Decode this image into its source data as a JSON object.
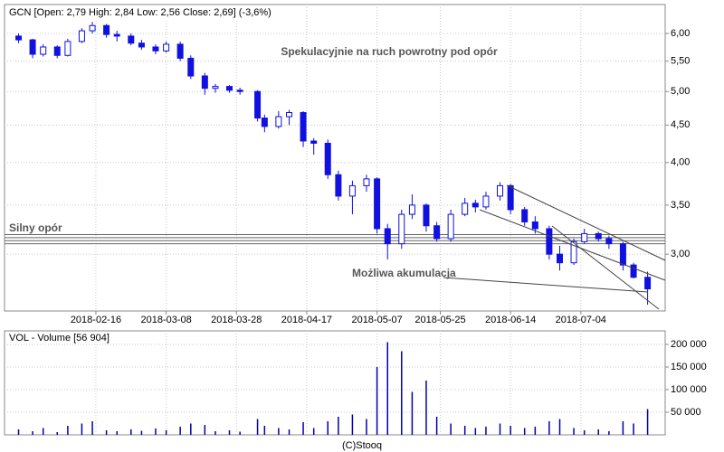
{
  "chart_data": {
    "type": "candlestick",
    "title": "GCN [Open: 2,79 High: 2,84 Low: 2,56 Close: 2,69] (-3,6%)",
    "volume_title": "VOL - Volume [56 904]",
    "footer": "(C)Stooq",
    "log_scale": true,
    "grid": true,
    "color": "#1010e0",
    "volume_color": "#0000aa",
    "x": [
      "2018-01-25",
      "2018-01-29",
      "2018-02-01",
      "2018-02-05",
      "2018-02-08",
      "2018-02-12",
      "2018-02-15",
      "2018-02-19",
      "2018-02-22",
      "2018-02-26",
      "2018-03-01",
      "2018-03-05",
      "2018-03-08",
      "2018-03-12",
      "2018-03-15",
      "2018-03-19",
      "2018-03-22",
      "2018-03-26",
      "2018-03-29",
      "2018-04-03",
      "2018-04-05",
      "2018-04-09",
      "2018-04-12",
      "2018-04-16",
      "2018-04-19",
      "2018-04-23",
      "2018-04-26",
      "2018-04-30",
      "2018-05-04",
      "2018-05-07",
      "2018-05-10",
      "2018-05-14",
      "2018-05-17",
      "2018-05-21",
      "2018-05-24",
      "2018-05-28",
      "2018-06-01",
      "2018-06-04",
      "2018-06-07",
      "2018-06-11",
      "2018-06-14",
      "2018-06-18",
      "2018-06-21",
      "2018-06-25",
      "2018-06-28",
      "2018-07-02",
      "2018-07-05",
      "2018-07-09",
      "2018-07-12",
      "2018-07-16",
      "2018-07-19",
      "2018-07-23"
    ],
    "open": [
      5.95,
      5.88,
      5.62,
      5.75,
      5.6,
      5.85,
      6.05,
      6.15,
      5.98,
      5.95,
      5.82,
      5.75,
      5.68,
      5.8,
      5.55,
      5.25,
      5.05,
      5.08,
      5.02,
      5.0,
      4.6,
      4.48,
      4.62,
      4.68,
      4.28,
      4.25,
      3.85,
      3.6,
      3.72,
      3.8,
      3.25,
      3.1,
      3.4,
      3.5,
      3.28,
      3.15,
      3.4,
      3.52,
      3.48,
      3.6,
      3.72,
      3.45,
      3.32,
      3.25,
      3.0,
      2.92,
      3.12,
      3.2,
      3.15,
      3.1,
      2.9,
      2.79
    ],
    "high": [
      6.0,
      5.9,
      5.8,
      5.78,
      5.9,
      6.1,
      6.22,
      6.18,
      6.05,
      6.0,
      5.88,
      5.8,
      5.85,
      5.85,
      5.6,
      5.3,
      5.12,
      5.1,
      5.06,
      5.02,
      4.65,
      4.7,
      4.72,
      4.7,
      4.32,
      4.3,
      3.9,
      3.78,
      3.85,
      3.82,
      3.3,
      3.45,
      3.62,
      3.52,
      3.32,
      3.45,
      3.58,
      3.56,
      3.65,
      3.76,
      3.74,
      3.48,
      3.38,
      3.28,
      3.08,
      3.15,
      3.25,
      3.22,
      3.18,
      3.12,
      2.92,
      2.84
    ],
    "low": [
      5.82,
      5.55,
      5.58,
      5.55,
      5.58,
      5.82,
      6.0,
      5.92,
      5.85,
      5.78,
      5.7,
      5.62,
      5.65,
      5.5,
      5.2,
      4.95,
      4.98,
      4.98,
      4.95,
      4.55,
      4.4,
      4.45,
      4.5,
      4.2,
      4.1,
      3.8,
      3.55,
      3.4,
      3.65,
      3.2,
      2.95,
      3.05,
      3.35,
      3.22,
      3.12,
      3.12,
      3.38,
      3.42,
      3.45,
      3.55,
      3.4,
      3.28,
      3.2,
      2.95,
      2.85,
      2.9,
      3.1,
      3.12,
      3.05,
      2.85,
      2.78,
      2.56
    ],
    "close": [
      5.88,
      5.62,
      5.75,
      5.6,
      5.85,
      6.05,
      6.15,
      5.98,
      5.95,
      5.82,
      5.75,
      5.68,
      5.8,
      5.55,
      5.25,
      5.05,
      5.08,
      5.02,
      5.0,
      4.6,
      4.48,
      4.62,
      4.68,
      4.28,
      4.25,
      3.85,
      3.6,
      3.72,
      3.8,
      3.25,
      3.1,
      3.4,
      3.5,
      3.28,
      3.15,
      3.4,
      3.52,
      3.48,
      3.6,
      3.72,
      3.45,
      3.32,
      3.25,
      3.0,
      2.92,
      3.12,
      3.2,
      3.15,
      3.1,
      2.9,
      2.79,
      2.69
    ],
    "volume": [
      12000,
      8000,
      15000,
      6000,
      20000,
      25000,
      30000,
      10000,
      8000,
      12000,
      9000,
      14000,
      10000,
      18000,
      25000,
      22000,
      8000,
      10000,
      7000,
      35000,
      20000,
      15000,
      12000,
      28000,
      15000,
      30000,
      40000,
      45000,
      35000,
      150000,
      205000,
      185000,
      95000,
      120000,
      40000,
      25000,
      20000,
      15000,
      18000,
      25000,
      20000,
      15000,
      18000,
      30000,
      35000,
      15000,
      10000,
      12000,
      8000,
      30000,
      25000,
      56904
    ],
    "xlim": [
      "2018-01-21",
      "2018-07-28"
    ],
    "xticks": [
      "2018-02-16",
      "2018-03-08",
      "2018-03-28",
      "2018-04-17",
      "2018-05-07",
      "2018-05-25",
      "2018-06-14",
      "2018-07-04"
    ],
    "ylim": [
      2.51,
      6.57
    ],
    "yticks": [
      {
        "value": 3,
        "label": "3,00"
      },
      {
        "value": 3.5,
        "label": "3,50"
      },
      {
        "value": 4,
        "label": "4,00"
      },
      {
        "value": 4.5,
        "label": "4,50"
      },
      {
        "value": 5,
        "label": "5,00"
      },
      {
        "value": 5.5,
        "label": "5,50"
      },
      {
        "value": 6,
        "label": "6,00"
      }
    ],
    "y2lim": [
      0,
      230000
    ],
    "y2ticks": [
      {
        "value": 50000,
        "label": "50 000"
      },
      {
        "value": 100000,
        "label": "100 000"
      },
      {
        "value": 150000,
        "label": "150 000"
      },
      {
        "value": 200000,
        "label": "200 000"
      }
    ],
    "resistance_levels": [
      3.19,
      3.16,
      3.13,
      3.1
    ],
    "annotations": [
      "Spekulacyjnie na ruch powrotny pod opór",
      "Silny opór",
      "Możliwa akumulacja"
    ]
  }
}
